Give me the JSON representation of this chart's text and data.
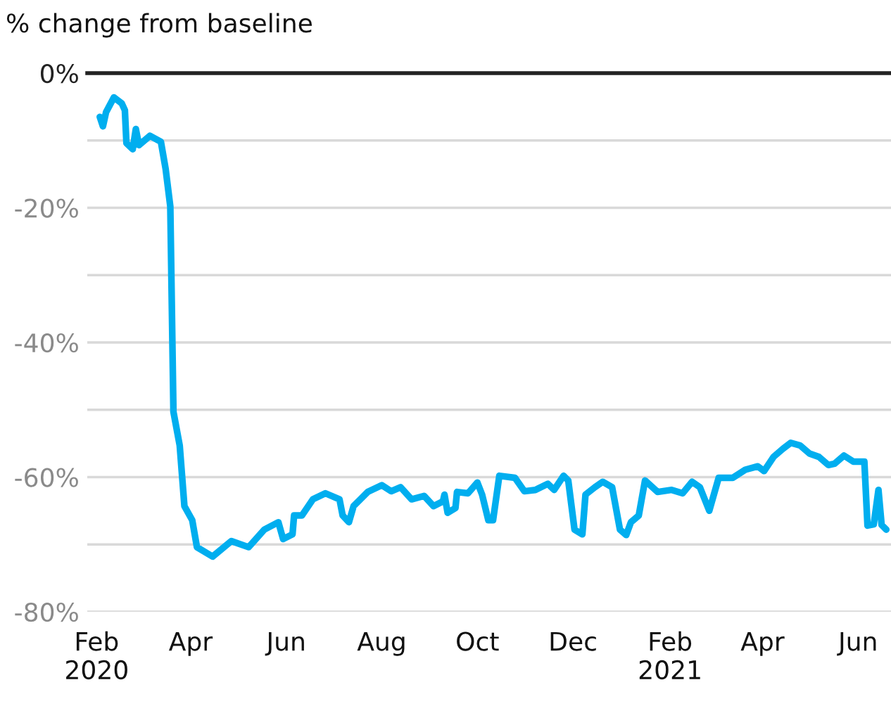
{
  "chart_data": {
    "type": "line",
    "ylabel": "% change from baseline",
    "x": [
      "2020-02-03",
      "2020-02-05",
      "2020-02-07",
      "2020-02-12",
      "2020-02-17",
      "2020-02-19",
      "2020-02-20",
      "2020-02-24",
      "2020-02-26",
      "2020-02-28",
      "2020-03-06",
      "2020-03-13",
      "2020-03-16",
      "2020-03-19",
      "2020-03-21",
      "2020-03-25",
      "2020-03-28",
      "2020-04-02",
      "2020-04-05",
      "2020-04-15",
      "2020-04-27",
      "2020-05-08",
      "2020-05-18",
      "2020-05-27",
      "2020-05-30",
      "2020-06-05",
      "2020-06-06",
      "2020-06-11",
      "2020-06-18",
      "2020-06-26",
      "2020-07-05",
      "2020-07-07",
      "2020-07-11",
      "2020-07-14",
      "2020-07-23",
      "2020-08-01",
      "2020-08-07",
      "2020-08-13",
      "2020-08-20",
      "2020-08-28",
      "2020-09-03",
      "2020-09-09",
      "2020-09-10",
      "2020-09-12",
      "2020-09-17",
      "2020-09-18",
      "2020-09-25",
      "2020-10-01",
      "2020-10-04",
      "2020-10-08",
      "2020-10-11",
      "2020-10-15",
      "2020-10-25",
      "2020-10-31",
      "2020-11-07",
      "2020-11-15",
      "2020-11-19",
      "2020-11-25",
      "2020-11-28",
      "2020-12-02",
      "2020-12-07",
      "2020-12-09",
      "2020-12-15",
      "2020-12-20",
      "2020-12-26",
      "2020-12-31",
      "2021-01-04",
      "2021-01-07",
      "2021-01-12",
      "2021-01-16",
      "2021-01-24",
      "2021-02-02",
      "2021-02-09",
      "2021-02-15",
      "2021-02-20",
      "2021-02-26",
      "2021-03-04",
      "2021-03-13",
      "2021-03-21",
      "2021-03-29",
      "2021-04-02",
      "2021-04-08",
      "2021-04-14",
      "2021-04-19",
      "2021-04-25",
      "2021-05-01",
      "2021-05-07",
      "2021-05-13",
      "2021-05-17",
      "2021-05-23",
      "2021-05-29",
      "2021-06-05",
      "2021-06-07",
      "2021-06-11",
      "2021-06-14",
      "2021-06-16",
      "2021-06-19"
    ],
    "series": [
      {
        "color": "#00aeef",
        "values": [
          -6.5,
          -7.9,
          -5.8,
          -3.6,
          -4.5,
          -5.5,
          -10.4,
          -11.3,
          -8.3,
          -10.7,
          -9.3,
          -10.2,
          -14.2,
          -19.8,
          -50.3,
          -55.3,
          -64.3,
          -66.4,
          -70.4,
          -71.8,
          -69.5,
          -70.4,
          -67.8,
          -66.7,
          -69.2,
          -68.5,
          -65.7,
          -65.7,
          -63.3,
          -62.4,
          -63.3,
          -65.7,
          -66.7,
          -64.3,
          -62.2,
          -61.2,
          -62.1,
          -61.5,
          -63.3,
          -62.8,
          -64.3,
          -63.6,
          -62.6,
          -65.3,
          -64.6,
          -62.2,
          -62.4,
          -60.8,
          -62.6,
          -66.4,
          -66.4,
          -59.8,
          -60.1,
          -62.1,
          -61.9,
          -61.0,
          -61.9,
          -59.8,
          -60.5,
          -67.8,
          -68.5,
          -62.6,
          -61.5,
          -60.7,
          -61.5,
          -67.8,
          -68.6,
          -66.7,
          -65.7,
          -60.5,
          -62.2,
          -61.9,
          -62.4,
          -60.7,
          -61.5,
          -65.0,
          -60.1,
          -60.1,
          -58.9,
          -58.4,
          -59.1,
          -57.0,
          -55.8,
          -54.9,
          -55.3,
          -56.5,
          -57.0,
          -58.2,
          -58.0,
          -56.8,
          -57.7,
          -57.7,
          -67.2,
          -67.0,
          -61.9,
          -67.1,
          -67.8
        ]
      }
    ],
    "xlim": [
      "2020-01-26",
      "2021-06-22"
    ],
    "xticks": [
      {
        "value": "2020-02-01",
        "label": "Feb\n2020"
      },
      {
        "value": "2020-04-01",
        "label": "Apr"
      },
      {
        "value": "2020-06-01",
        "label": "Jun"
      },
      {
        "value": "2020-08-01",
        "label": "Aug"
      },
      {
        "value": "2020-10-01",
        "label": "Oct"
      },
      {
        "value": "2020-12-01",
        "label": "Dec"
      },
      {
        "value": "2021-02-01",
        "label": "Feb\n2021"
      },
      {
        "value": "2021-04-01",
        "label": "Apr"
      },
      {
        "value": "2021-06-01",
        "label": "Jun"
      }
    ],
    "ylim": [
      -80,
      0
    ],
    "yticks": [
      {
        "value": 0,
        "label": "0%"
      },
      {
        "value": -10,
        "label": null
      },
      {
        "value": -20,
        "label": "-20%"
      },
      {
        "value": -30,
        "label": null
      },
      {
        "value": -40,
        "label": "-40%"
      },
      {
        "value": -50,
        "label": null
      },
      {
        "value": -60,
        "label": "-60%"
      },
      {
        "value": -70,
        "label": null
      },
      {
        "value": -80,
        "label": "-80%"
      }
    ],
    "ref_lines": [
      {
        "axis": "y",
        "value": 0,
        "color": "#222222"
      }
    ],
    "grid": "y",
    "marker": "none",
    "line_style": "solid"
  }
}
